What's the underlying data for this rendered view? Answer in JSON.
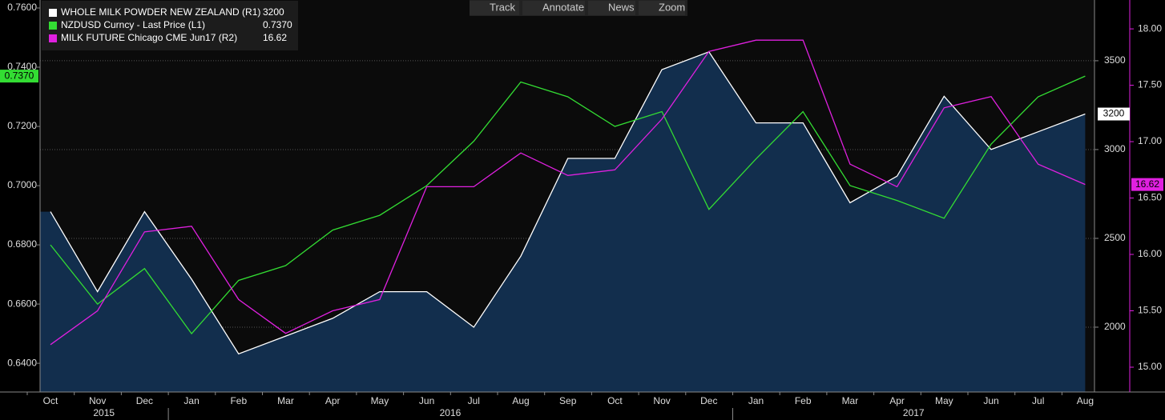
{
  "chart_data": {
    "type": "line",
    "toolbar": [
      "Track",
      "Annotate",
      "News",
      "Zoom"
    ],
    "x": [
      "2015-10",
      "2015-11",
      "2015-12",
      "2016-01",
      "2016-02",
      "2016-03",
      "2016-04",
      "2016-05",
      "2016-06",
      "2016-07",
      "2016-08",
      "2016-09",
      "2016-10",
      "2016-11",
      "2016-12",
      "2017-01",
      "2017-02",
      "2017-03",
      "2017-04",
      "2017-05",
      "2017-06",
      "2017-07",
      "2017-08"
    ],
    "xticks": [
      {
        "value": "2015-10",
        "label": "Oct"
      },
      {
        "value": "2015-11",
        "label": "Nov"
      },
      {
        "value": "2015-12",
        "label": "Dec"
      },
      {
        "value": "2016-01",
        "label": "Jan"
      },
      {
        "value": "2016-02",
        "label": "Feb"
      },
      {
        "value": "2016-03",
        "label": "Mar"
      },
      {
        "value": "2016-04",
        "label": "Apr"
      },
      {
        "value": "2016-05",
        "label": "May"
      },
      {
        "value": "2016-06",
        "label": "Jun"
      },
      {
        "value": "2016-07",
        "label": "Jul"
      },
      {
        "value": "2016-08",
        "label": "Aug"
      },
      {
        "value": "2016-09",
        "label": "Sep"
      },
      {
        "value": "2016-10",
        "label": "Oct"
      },
      {
        "value": "2016-11",
        "label": "Nov"
      },
      {
        "value": "2016-12",
        "label": "Dec"
      },
      {
        "value": "2017-01",
        "label": "Jan"
      },
      {
        "value": "2017-02",
        "label": "Feb"
      },
      {
        "value": "2017-03",
        "label": "Mar"
      },
      {
        "value": "2017-04",
        "label": "Apr"
      },
      {
        "value": "2017-05",
        "label": "May"
      },
      {
        "value": "2017-06",
        "label": "Jun"
      },
      {
        "value": "2017-07",
        "label": "Jul"
      },
      {
        "value": "2017-08",
        "label": "Aug"
      }
    ],
    "years": [
      "2015",
      "2016",
      "2017"
    ],
    "ylim": [
      0.6303,
      0.7627
    ],
    "yticks": [
      {
        "value": 0.64,
        "label": "0.6400"
      },
      {
        "value": 0.66,
        "label": "0.6600"
      },
      {
        "value": 0.68,
        "label": "0.6800"
      },
      {
        "value": 0.7,
        "label": "0.7000"
      },
      {
        "value": 0.72,
        "label": "0.7200"
      },
      {
        "value": 0.74,
        "label": "0.7400"
      },
      {
        "value": 0.76,
        "label": "0.7600"
      }
    ],
    "y2lim": [
      1635,
      3842
    ],
    "y2ticks": [
      2000,
      2500,
      3000,
      3500
    ],
    "y3lim": [
      14.78,
      18.256
    ],
    "y3ticks": [
      {
        "value": 15,
        "label": "15.00"
      },
      {
        "value": 15.5,
        "label": "15.50"
      },
      {
        "value": 16,
        "label": "16.00"
      },
      {
        "value": 16.5,
        "label": "16.50"
      },
      {
        "value": 17,
        "label": "17.00"
      },
      {
        "value": 17.5,
        "label": "17.50"
      },
      {
        "value": 18,
        "label": "18.00"
      }
    ],
    "grid": true,
    "series": [
      {
        "name": "WHOLE MILK POWDER NEW ZEALAND (R1)",
        "color": "#ffffff",
        "fill": "#122e4d",
        "axis": "y2",
        "last_value_label": "3200",
        "values": [
          2650,
          2200,
          2650,
          2270,
          1850,
          1950,
          2050,
          2200,
          2200,
          2000,
          2400,
          2950,
          2950,
          3450,
          3550,
          3150,
          3150,
          2700,
          2850,
          3300,
          3000,
          3100,
          3200
        ]
      },
      {
        "name": "NZDUSD Curncy - Last Price (L1)",
        "color": "#33dd33",
        "axis": "y",
        "last_value_label": "0.7370",
        "values": [
          0.68,
          0.66,
          0.672,
          0.65,
          0.668,
          0.673,
          0.685,
          0.69,
          0.7,
          0.715,
          0.735,
          0.73,
          0.72,
          0.725,
          0.692,
          0.709,
          0.725,
          0.7,
          0.695,
          0.689,
          0.714,
          0.73,
          0.737
        ]
      },
      {
        "name": "MILK FUTURE Chicago CME Jun17 (R2)",
        "color": "#e020e0",
        "axis": "y3",
        "last_value_label": "16.62",
        "values": [
          15.2,
          15.5,
          16.2,
          16.25,
          15.6,
          15.3,
          15.5,
          15.6,
          16.6,
          16.6,
          16.9,
          16.7,
          16.75,
          17.2,
          17.8,
          17.9,
          17.9,
          16.8,
          16.6,
          17.3,
          17.4,
          16.8,
          16.62
        ]
      }
    ]
  }
}
